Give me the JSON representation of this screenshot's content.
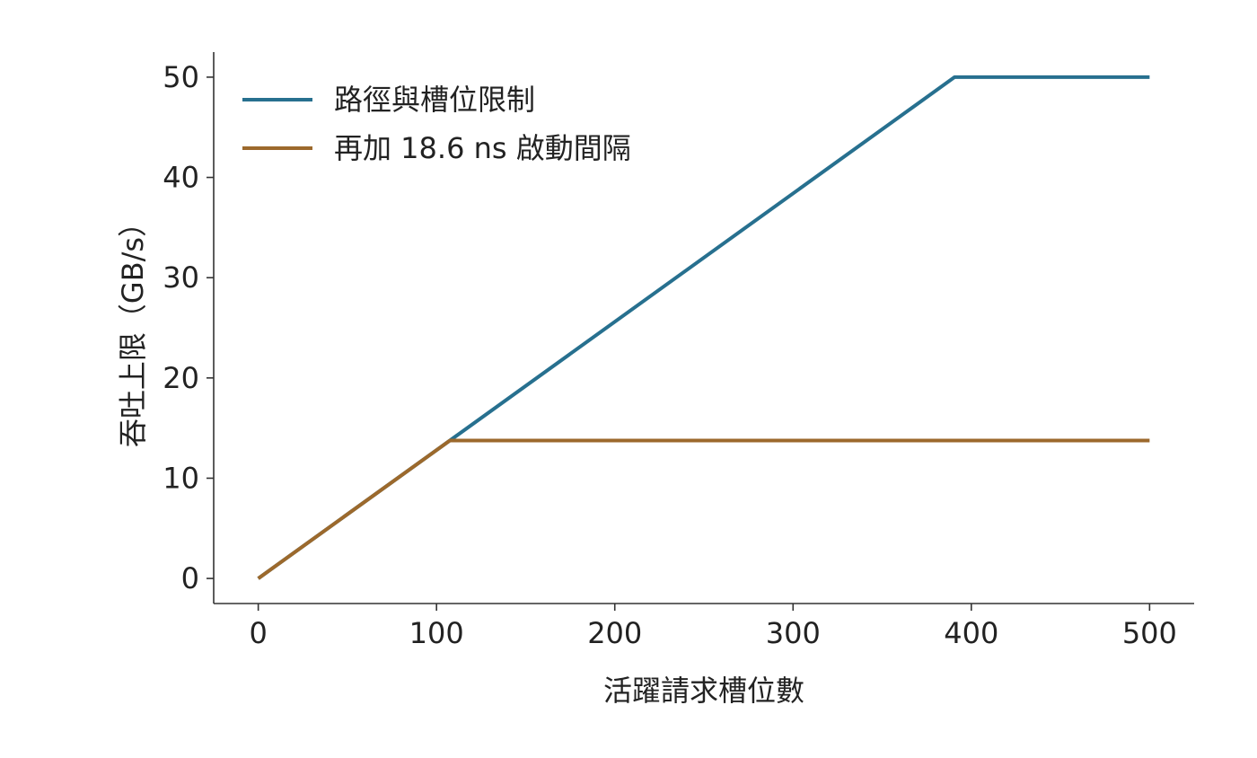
{
  "chart_data": {
    "type": "line",
    "xlabel": "活躍請求槽位數",
    "ylabel": "吞吐上限（GB/s）",
    "xlim": [
      -25,
      525
    ],
    "xticks": [
      0,
      100,
      200,
      300,
      400,
      500
    ],
    "ylim": [
      -2.5,
      52.5
    ],
    "yticks": [
      0,
      10,
      20,
      30,
      40,
      50
    ],
    "legend": "upper-left",
    "series": [
      {
        "name": "路徑與槽位限制",
        "color": "#27708f",
        "x": [
          0,
          390.6,
          500
        ],
        "values": [
          0,
          50,
          50
        ]
      },
      {
        "name": "再加 18.6 ns 啟動間隔",
        "color": "#9c692c",
        "x": [
          0,
          107.5,
          500
        ],
        "values": [
          0,
          13.76,
          13.76
        ]
      }
    ]
  }
}
